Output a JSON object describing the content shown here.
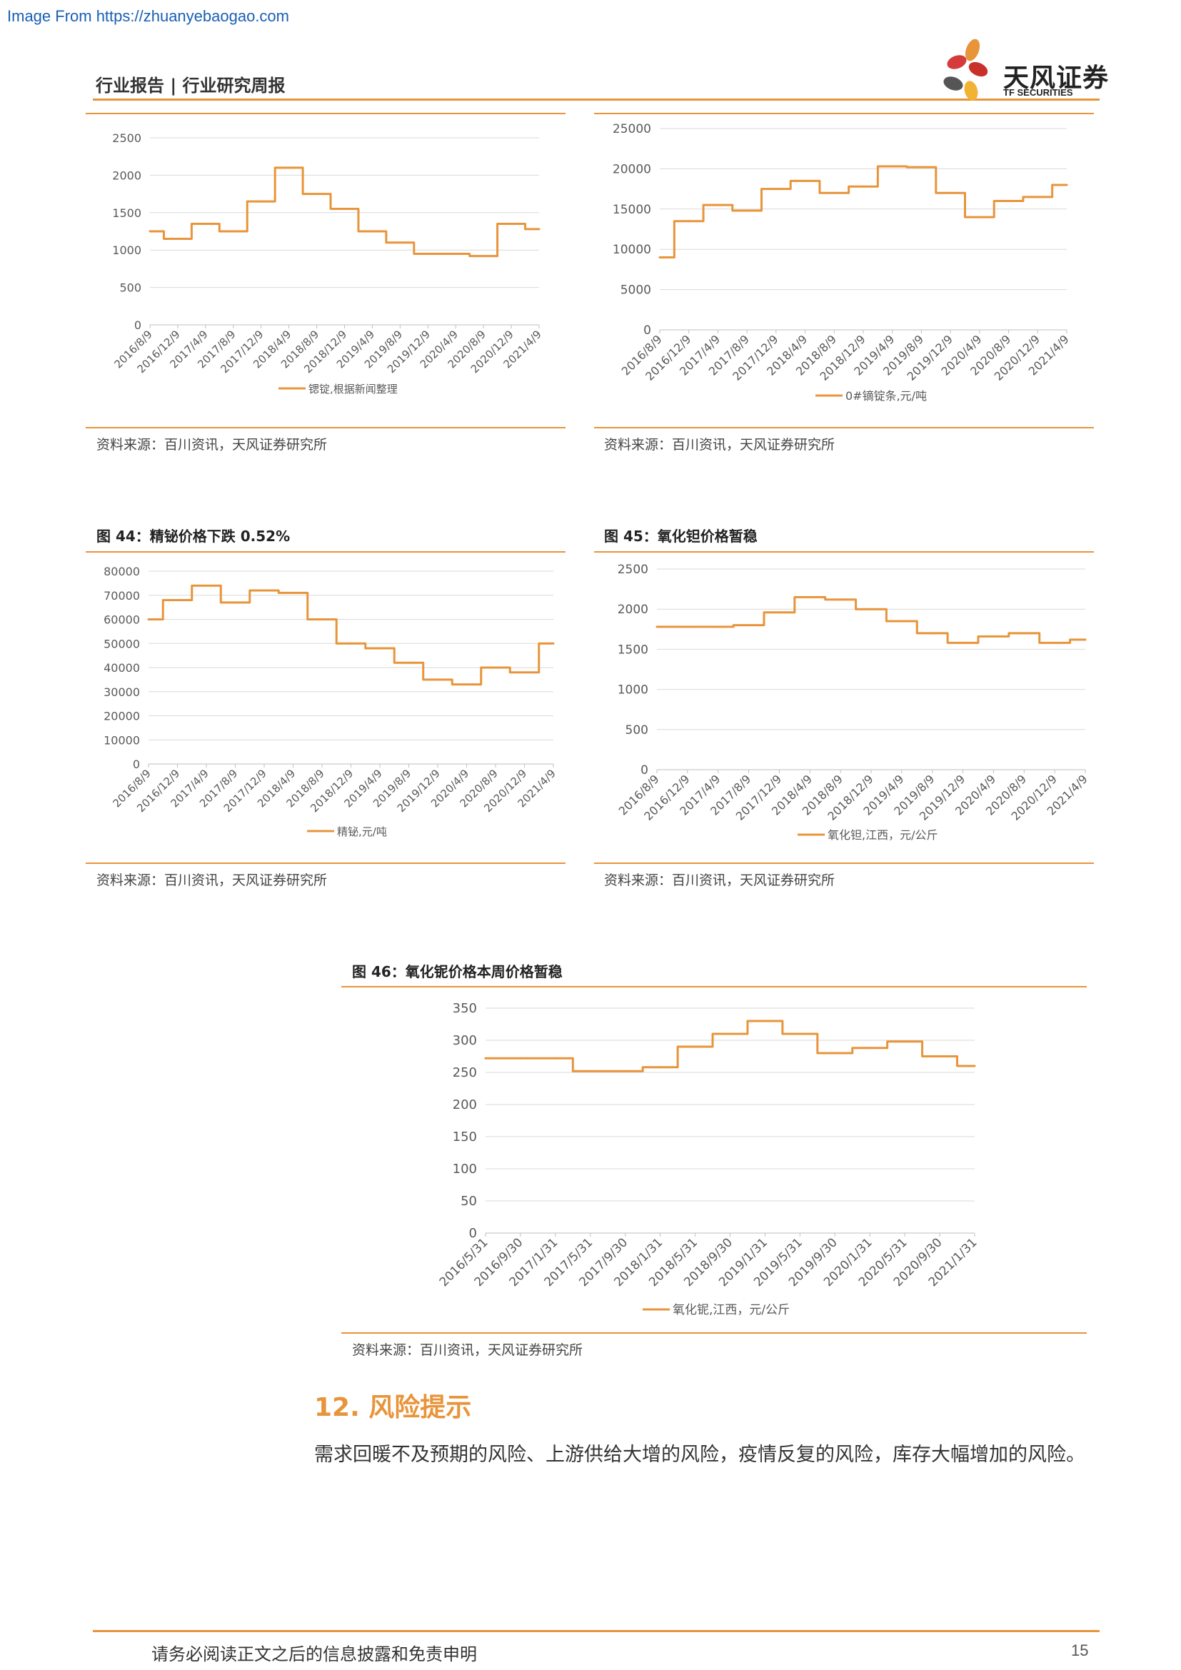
{
  "watermark": "Image From https://zhuanyebaogao.com",
  "header": {
    "title": "行业报告 | 行业研究周报",
    "logo_cn": "天风证券",
    "logo_en": "TF SECURITIES",
    "accent_color": "#e8943a"
  },
  "charts": [
    {
      "id": "c1",
      "title": "",
      "source": "资料来源：百川资讯，天风证券研究所",
      "chart_data": {
        "type": "line",
        "x": [
          "2016/8/9",
          "2016/12/9",
          "2017/4/9",
          "2017/8/9",
          "2017/12/9",
          "2018/4/9",
          "2018/8/9",
          "2018/12/9",
          "2019/4/9",
          "2019/8/9",
          "2019/12/9",
          "2020/4/9",
          "2020/8/9",
          "2020/12/9",
          "2021/4/9"
        ],
        "series": [
          {
            "name": "锶锭,根据新闻整理",
            "values": [
              1250,
              1150,
              1350,
              1250,
              1650,
              2100,
              1750,
              1550,
              1250,
              1100,
              950,
              950,
              920,
              1350,
              1280
            ]
          }
        ],
        "y_ticks": [
          0,
          500,
          1000,
          1500,
          2000,
          2500
        ],
        "ylim": [
          0,
          2500
        ],
        "grid": true,
        "legend": "bottom"
      }
    },
    {
      "id": "c2",
      "title": "",
      "source": "资料来源：百川资讯，天风证券研究所",
      "chart_data": {
        "type": "line",
        "x": [
          "2016/8/9",
          "2016/12/9",
          "2017/4/9",
          "2017/8/9",
          "2017/12/9",
          "2018/4/9",
          "2018/8/9",
          "2018/12/9",
          "2019/4/9",
          "2019/8/9",
          "2019/12/9",
          "2020/4/9",
          "2020/8/9",
          "2020/12/9",
          "2021/4/9"
        ],
        "series": [
          {
            "name": "0#镝锭条,元/吨",
            "values": [
              9000,
              13500,
              15500,
              14800,
              17500,
              18500,
              17000,
              17800,
              20300,
              20200,
              17000,
              14000,
              16000,
              16500,
              18000
            ]
          }
        ],
        "y_ticks": [
          0,
          5000,
          10000,
          15000,
          20000,
          25000
        ],
        "ylim": [
          0,
          25000
        ],
        "grid": true,
        "legend": "bottom"
      }
    },
    {
      "id": "c3",
      "title": "图 44：精铋价格下跌 0.52%",
      "source": "资料来源：百川资讯，天风证券研究所",
      "chart_data": {
        "type": "line",
        "x": [
          "2016/8/9",
          "2016/12/9",
          "2017/4/9",
          "2017/8/9",
          "2017/12/9",
          "2018/4/9",
          "2018/8/9",
          "2018/12/9",
          "2019/4/9",
          "2019/8/9",
          "2019/12/9",
          "2020/4/9",
          "2020/8/9",
          "2020/12/9",
          "2021/4/9"
        ],
        "series": [
          {
            "name": "精铋,元/吨",
            "values": [
              60000,
              68000,
              74000,
              67000,
              72000,
              71000,
              60000,
              50000,
              48000,
              42000,
              35000,
              33000,
              40000,
              38000,
              50000
            ]
          }
        ],
        "y_ticks": [
          0,
          10000,
          20000,
          30000,
          40000,
          50000,
          60000,
          70000,
          80000
        ],
        "ylim": [
          0,
          80000
        ],
        "grid": true,
        "legend": "bottom"
      }
    },
    {
      "id": "c4",
      "title": "图 45：氧化钽价格暂稳",
      "source": "资料来源：百川资讯，天风证券研究所",
      "chart_data": {
        "type": "line",
        "x": [
          "2016/8/9",
          "2016/12/9",
          "2017/4/9",
          "2017/8/9",
          "2017/12/9",
          "2018/4/9",
          "2018/8/9",
          "2018/12/9",
          "2019/4/9",
          "2019/8/9",
          "2019/12/9",
          "2020/4/9",
          "2020/8/9",
          "2020/12/9",
          "2021/4/9"
        ],
        "series": [
          {
            "name": "氧化钽,江西，元/公斤",
            "values": [
              1780,
              1780,
              1780,
              1800,
              1960,
              2150,
              2120,
              2000,
              1850,
              1700,
              1580,
              1660,
              1700,
              1580,
              1620
            ]
          }
        ],
        "y_ticks": [
          0,
          500,
          1000,
          1500,
          2000,
          2500
        ],
        "ylim": [
          0,
          2500
        ],
        "grid": true,
        "legend": "bottom"
      }
    },
    {
      "id": "c5",
      "title": "图 46：氧化铌价格本周价格暂稳",
      "source": "资料来源：百川资讯，天风证券研究所",
      "chart_data": {
        "type": "line",
        "x": [
          "2016/5/31",
          "2016/9/30",
          "2017/1/31",
          "2017/5/31",
          "2017/9/30",
          "2018/1/31",
          "2018/5/31",
          "2018/9/30",
          "2019/1/31",
          "2019/5/31",
          "2019/9/30",
          "2020/1/31",
          "2020/5/31",
          "2020/9/30",
          "2021/1/31"
        ],
        "series": [
          {
            "name": "氧化铌,江西，元/公斤",
            "values": [
              272,
              272,
              272,
              252,
              252,
              258,
              290,
              310,
              330,
              310,
              280,
              288,
              298,
              275,
              260
            ]
          }
        ],
        "y_ticks": [
          0,
          50,
          100,
          150,
          200,
          250,
          300,
          350
        ],
        "ylim": [
          0,
          350
        ],
        "grid": true,
        "legend": "bottom"
      }
    }
  ],
  "section": {
    "heading": "12. 风险提示",
    "body": "需求回暖不及预期的风险、上游供给大增的风险，疫情反复的风险，库存大幅增加的风险。"
  },
  "footer": {
    "disclaimer": "请务必阅读正文之后的信息披露和免责申明",
    "page_number": "15"
  }
}
